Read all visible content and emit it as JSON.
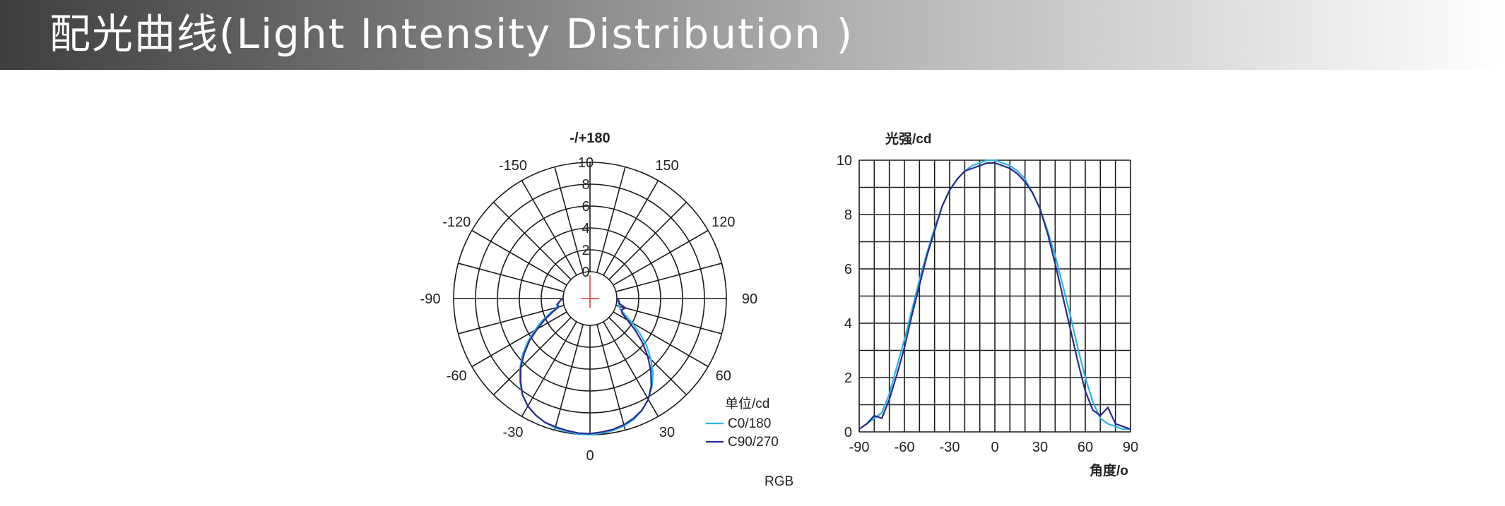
{
  "header": {
    "title": "配光曲线(Light Intensity Distribution )"
  },
  "footer_label": "RGB",
  "colors": {
    "c0_180": "#2bb3e6",
    "c90_270": "#2a2a8a",
    "center_cross": "#e6333a",
    "grid": "#1a1a1a"
  },
  "chart_data": [
    {
      "type": "polar",
      "angle_labels": {
        "top": "-/+180",
        "left": "-90",
        "right": "90",
        "bottom": "0",
        "upper_left": [
          "-150",
          "-120"
        ],
        "upper_right": [
          "150",
          "120"
        ],
        "lower_left": [
          "-60",
          "-30"
        ],
        "lower_right": [
          "60",
          "30"
        ]
      },
      "radial_ticks": [
        "10",
        "8",
        "6",
        "4",
        "2",
        "0"
      ],
      "radial_range": [
        0,
        10
      ],
      "legend": {
        "unit": "单位/cd",
        "entries": [
          "C0/180",
          "C90/270"
        ]
      },
      "series": [
        {
          "name": "C0/180",
          "angles": [
            -90,
            -85,
            -80,
            -75,
            -70,
            -65,
            -60,
            -55,
            -50,
            -45,
            -40,
            -35,
            -30,
            -25,
            -20,
            -15,
            -10,
            -5,
            0,
            5,
            10,
            15,
            20,
            25,
            30,
            35,
            40,
            45,
            50,
            55,
            60,
            65,
            70,
            75,
            80,
            85,
            90
          ],
          "values": [
            0.1,
            0.3,
            0.5,
            0.7,
            1.4,
            2.4,
            3.4,
            4.5,
            5.6,
            6.6,
            7.5,
            8.3,
            8.9,
            9.3,
            9.6,
            9.8,
            9.9,
            10.0,
            10.0,
            9.9,
            9.8,
            9.6,
            9.3,
            8.8,
            8.2,
            7.4,
            6.5,
            5.4,
            4.3,
            3.1,
            2.0,
            1.1,
            0.5,
            0.3,
            0.2,
            0.1,
            0.1
          ]
        },
        {
          "name": "C90/270",
          "angles": [
            -90,
            -85,
            -80,
            -75,
            -70,
            -65,
            -60,
            -55,
            -50,
            -45,
            -40,
            -35,
            -30,
            -25,
            -20,
            -15,
            -10,
            -5,
            0,
            5,
            10,
            15,
            20,
            25,
            30,
            35,
            40,
            45,
            50,
            55,
            60,
            65,
            70,
            75,
            80,
            85,
            90
          ],
          "values": [
            0.1,
            0.3,
            0.6,
            0.5,
            1.2,
            2.1,
            3.1,
            4.3,
            5.4,
            6.5,
            7.4,
            8.3,
            8.9,
            9.3,
            9.6,
            9.7,
            9.8,
            9.9,
            9.9,
            9.8,
            9.7,
            9.5,
            9.2,
            8.8,
            8.2,
            7.3,
            6.2,
            5.0,
            3.8,
            2.6,
            1.5,
            0.8,
            0.6,
            0.9,
            0.3,
            0.2,
            0.1
          ]
        }
      ]
    },
    {
      "type": "line",
      "ylabel": "光强/cd",
      "xlabel": "角度/o",
      "xlim": [
        -90,
        90
      ],
      "ylim": [
        0,
        10
      ],
      "xticks": [
        "-90",
        "-60",
        "-30",
        "0",
        "30",
        "60",
        "90"
      ],
      "yticks": [
        "0",
        "2",
        "4",
        "6",
        "8",
        "10"
      ],
      "grid": true,
      "series": [
        {
          "name": "C0/180",
          "x": [
            -90,
            -85,
            -80,
            -75,
            -70,
            -65,
            -60,
            -55,
            -50,
            -45,
            -40,
            -35,
            -30,
            -25,
            -20,
            -15,
            -10,
            -5,
            0,
            5,
            10,
            15,
            20,
            25,
            30,
            35,
            40,
            45,
            50,
            55,
            60,
            65,
            70,
            75,
            80,
            85,
            90
          ],
          "y": [
            0.1,
            0.3,
            0.5,
            0.7,
            1.4,
            2.4,
            3.4,
            4.5,
            5.6,
            6.6,
            7.5,
            8.3,
            8.9,
            9.3,
            9.6,
            9.8,
            9.9,
            10.0,
            10.0,
            9.9,
            9.8,
            9.6,
            9.3,
            8.8,
            8.2,
            7.4,
            6.5,
            5.4,
            4.3,
            3.1,
            2.0,
            1.1,
            0.5,
            0.3,
            0.2,
            0.1,
            0.1
          ]
        },
        {
          "name": "C90/270",
          "x": [
            -90,
            -85,
            -80,
            -75,
            -70,
            -65,
            -60,
            -55,
            -50,
            -45,
            -40,
            -35,
            -30,
            -25,
            -20,
            -15,
            -10,
            -5,
            0,
            5,
            10,
            15,
            20,
            25,
            30,
            35,
            40,
            45,
            50,
            55,
            60,
            65,
            70,
            75,
            80,
            85,
            90
          ],
          "y": [
            0.1,
            0.3,
            0.6,
            0.5,
            1.2,
            2.1,
            3.1,
            4.3,
            5.4,
            6.5,
            7.4,
            8.3,
            8.9,
            9.3,
            9.6,
            9.7,
            9.8,
            9.9,
            9.9,
            9.8,
            9.7,
            9.5,
            9.2,
            8.8,
            8.2,
            7.3,
            6.2,
            5.0,
            3.8,
            2.6,
            1.5,
            0.8,
            0.6,
            0.9,
            0.3,
            0.2,
            0.1
          ]
        }
      ]
    }
  ]
}
